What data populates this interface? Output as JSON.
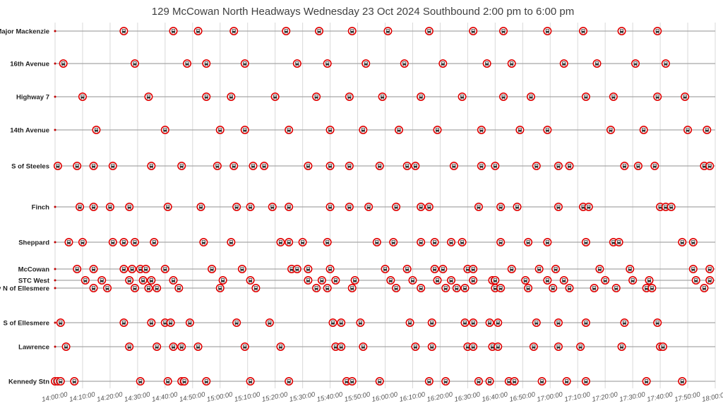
{
  "chart_data": {
    "type": "scatter",
    "title": "129 McCowan North Headways Wednesday 23 Oct 2024 Southbound 2:00 pm to 6:00 pm",
    "xlabel": "",
    "ylabel": "",
    "x_range": [
      "14:00:00",
      "18:00:00"
    ],
    "x_ticks": [
      "14:00:00",
      "14:10:00",
      "14:20:00",
      "14:30:00",
      "14:40:00",
      "14:50:00",
      "15:00:00",
      "15:10:00",
      "15:20:00",
      "15:30:00",
      "15:40:00",
      "15:50:00",
      "16:00:00",
      "16:10:00",
      "16:20:00",
      "16:30:00",
      "16:40:00",
      "16:50:00",
      "17:00:00",
      "17:10:00",
      "17:20:00",
      "17:30:00",
      "17:40:00",
      "17:50:00",
      "18:00:00"
    ],
    "grid": "vertical",
    "marker": "bus-icon",
    "marker_color": "#e00000",
    "line_color": "#a6a6a6",
    "series": [
      {
        "name": "S of Major Mackenzie",
        "times": [
          "14:25:00",
          "14:43:00",
          "14:52:00",
          "15:05:00",
          "15:24:00",
          "15:36:00",
          "15:48:00",
          "16:01:00",
          "16:16:00",
          "16:32:00",
          "16:43:00",
          "16:59:00",
          "17:12:00",
          "17:26:00",
          "17:39:00"
        ]
      },
      {
        "name": "16th Avenue",
        "times": [
          "14:03:00",
          "14:29:00",
          "14:48:00",
          "14:55:00",
          "15:09:00",
          "15:28:00",
          "15:39:00",
          "15:53:00",
          "16:07:00",
          "16:21:00",
          "16:37:00",
          "16:46:00",
          "17:05:00",
          "17:17:00",
          "17:31:00",
          "17:42:00"
        ]
      },
      {
        "name": "Highway 7",
        "times": [
          "14:10:00",
          "14:34:00",
          "14:55:00",
          "15:04:00",
          "15:20:00",
          "15:35:00",
          "15:47:00",
          "15:59:00",
          "16:13:00",
          "16:28:00",
          "16:43:00",
          "16:53:00",
          "17:13:00",
          "17:23:00",
          "17:39:00",
          "17:49:00"
        ]
      },
      {
        "name": "14th Avenue",
        "times": [
          "14:15:00",
          "14:40:00",
          "15:00:00",
          "15:09:00",
          "15:25:00",
          "15:40:00",
          "15:52:00",
          "16:05:00",
          "16:19:00",
          "16:35:00",
          "16:49:00",
          "16:59:00",
          "17:22:00",
          "17:34:00",
          "17:50:00",
          "17:57:00"
        ]
      },
      {
        "name": "S of Steeles",
        "times": [
          "14:01:00",
          "14:08:00",
          "14:14:00",
          "14:21:00",
          "14:35:00",
          "14:46:00",
          "14:59:00",
          "15:05:00",
          "15:12:00",
          "15:16:00",
          "15:32:00",
          "15:40:00",
          "15:47:00",
          "15:58:00",
          "16:08:00",
          "16:11:00",
          "16:25:00",
          "16:35:00",
          "16:40:00",
          "16:55:00",
          "17:03:00",
          "17:07:00",
          "17:27:00",
          "17:32:00",
          "17:38:00",
          "17:56:00",
          "17:58:00"
        ]
      },
      {
        "name": "Finch",
        "times": [
          "14:09:00",
          "14:14:00",
          "14:20:00",
          "14:27:00",
          "14:41:00",
          "14:53:00",
          "15:06:00",
          "15:11:00",
          "15:19:00",
          "15:25:00",
          "15:40:00",
          "15:47:00",
          "15:54:00",
          "16:04:00",
          "16:13:00",
          "16:16:00",
          "16:34:00",
          "16:42:00",
          "16:48:00",
          "17:03:00",
          "17:12:00",
          "17:14:00",
          "17:40:00",
          "17:42:00",
          "17:44:00"
        ]
      },
      {
        "name": "Sheppard",
        "times": [
          "14:05:00",
          "14:10:00",
          "14:21:00",
          "14:25:00",
          "14:29:00",
          "14:36:00",
          "14:54:00",
          "15:04:00",
          "15:22:00",
          "15:25:00",
          "15:30:00",
          "15:39:00",
          "15:57:00",
          "16:03:00",
          "16:13:00",
          "16:18:00",
          "16:24:00",
          "16:28:00",
          "16:42:00",
          "16:52:00",
          "16:59:00",
          "17:13:00",
          "17:23:00",
          "17:25:00",
          "17:48:00",
          "17:52:00"
        ]
      },
      {
        "name": "McCowan",
        "times": [
          "14:08:00",
          "14:14:00",
          "14:25:00",
          "14:28:00",
          "14:31:00",
          "14:33:00",
          "14:40:00",
          "14:57:00",
          "15:08:00",
          "15:26:00",
          "15:28:00",
          "15:32:00",
          "15:40:00",
          "16:00:00",
          "16:08:00",
          "16:18:00",
          "16:21:00",
          "16:30:00",
          "16:32:00",
          "16:46:00",
          "16:56:00",
          "17:02:00",
          "17:18:00",
          "17:29:00",
          "17:52:00",
          "17:58:00"
        ]
      },
      {
        "name": "STC West",
        "times": [
          "14:11:00",
          "14:17:00",
          "14:27:00",
          "14:32:00",
          "14:35:00",
          "14:43:00",
          "15:01:00",
          "15:11:00",
          "15:32:00",
          "15:37:00",
          "15:42:00",
          "15:49:00",
          "16:02:00",
          "16:10:00",
          "16:19:00",
          "16:24:00",
          "16:32:00",
          "16:39:00",
          "16:40:00",
          "16:51:00",
          "16:59:00",
          "17:05:00",
          "17:20:00",
          "17:30:00",
          "17:36:00",
          "17:53:00",
          "17:58:00"
        ]
      },
      {
        "name": "Brimley N of Ellesmere",
        "times": [
          "14:14:00",
          "14:19:00",
          "14:29:00",
          "14:34:00",
          "14:37:00",
          "14:45:00",
          "15:00:00",
          "15:13:00",
          "15:35:00",
          "15:39:00",
          "15:48:00",
          "16:04:00",
          "16:13:00",
          "16:22:00",
          "16:26:00",
          "16:29:00",
          "16:40:00",
          "16:42:00",
          "16:52:00",
          "17:01:00",
          "17:07:00",
          "17:16:00",
          "17:24:00",
          "17:35:00",
          "17:37:00",
          "17:56:00"
        ]
      },
      {
        "name": "S of Ellesmere",
        "times": [
          "14:02:00",
          "14:25:00",
          "14:35:00",
          "14:40:00",
          "14:42:00",
          "14:49:00",
          "15:06:00",
          "15:18:00",
          "15:41:00",
          "15:44:00",
          "15:51:00",
          "16:09:00",
          "16:17:00",
          "16:29:00",
          "16:32:00",
          "16:38:00",
          "16:41:00",
          "16:55:00",
          "17:03:00",
          "17:13:00",
          "17:27:00",
          "17:39:00"
        ]
      },
      {
        "name": "Lawrence",
        "times": [
          "14:04:00",
          "14:27:00",
          "14:37:00",
          "14:43:00",
          "14:46:00",
          "14:52:00",
          "15:09:00",
          "15:22:00",
          "15:42:00",
          "15:44:00",
          "15:52:00",
          "16:11:00",
          "16:17:00",
          "16:30:00",
          "16:32:00",
          "16:39:00",
          "16:41:00",
          "16:54:00",
          "17:03:00",
          "17:11:00",
          "17:26:00",
          "17:40:00",
          "17:41:00"
        ]
      },
      {
        "name": "Kennedy Stn",
        "times": [
          "14:00:00",
          "14:01:00",
          "14:02:00",
          "14:07:00",
          "14:31:00",
          "14:41:00",
          "14:46:00",
          "14:47:00",
          "14:55:00",
          "15:11:00",
          "15:25:00",
          "15:46:00",
          "15:48:00",
          "15:58:00",
          "16:16:00",
          "16:22:00",
          "16:34:00",
          "16:38:00",
          "16:45:00",
          "16:47:00",
          "16:57:00",
          "17:06:00",
          "17:13:00",
          "17:35:00",
          "17:48:00"
        ]
      }
    ]
  }
}
